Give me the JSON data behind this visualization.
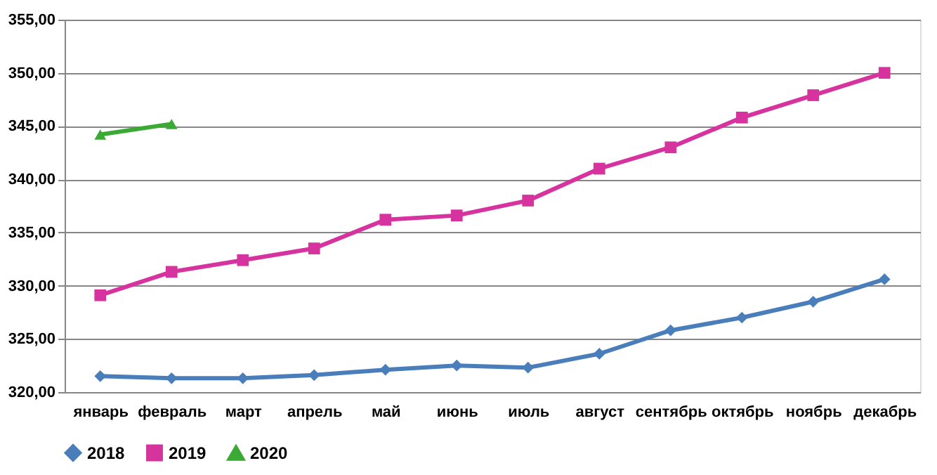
{
  "chart_data": {
    "type": "line",
    "categories": [
      "январь",
      "февраль",
      "март",
      "апрель",
      "май",
      "июнь",
      "июль",
      "август",
      "сентябрь",
      "октябрь",
      "ноябрь",
      "декабрь"
    ],
    "series": [
      {
        "name": "2018",
        "color": "#4a7ebb",
        "marker": "diamond",
        "values": [
          321.5,
          321.3,
          321.3,
          321.6,
          322.1,
          322.5,
          322.3,
          323.6,
          325.8,
          327.0,
          328.5,
          330.6
        ]
      },
      {
        "name": "2019",
        "color": "#d6339e",
        "marker": "square",
        "values": [
          329.1,
          331.3,
          332.4,
          333.5,
          336.2,
          336.6,
          338.0,
          341.0,
          343.0,
          345.8,
          347.9,
          350.0
        ]
      },
      {
        "name": "2020",
        "color": "#3aaa35",
        "marker": "triangle",
        "values": [
          344.2,
          345.2,
          null,
          null,
          null,
          null,
          null,
          null,
          null,
          null,
          null,
          null
        ]
      }
    ],
    "ylim": [
      320,
      355
    ],
    "yticks": [
      {
        "value": 320,
        "label": "320,00"
      },
      {
        "value": 325,
        "label": "325,00"
      },
      {
        "value": 330,
        "label": "330,00"
      },
      {
        "value": 335,
        "label": "335,00"
      },
      {
        "value": 340,
        "label": "340,00"
      },
      {
        "value": 345,
        "label": "345,00"
      },
      {
        "value": 350,
        "label": "350,00"
      },
      {
        "value": 355,
        "label": "355,00"
      }
    ],
    "grid": "y",
    "legend": "bottom",
    "line_style": "solid"
  }
}
